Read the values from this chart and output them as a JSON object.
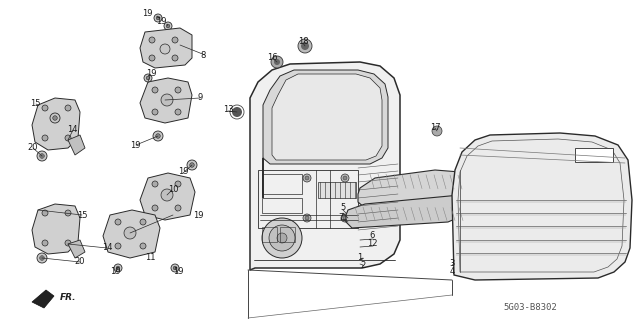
{
  "diagram_code": "5G03-B8302",
  "background_color": "#ffffff",
  "line_color": "#2a2a2a",
  "figsize": [
    6.4,
    3.19
  ],
  "dpi": 100,
  "labels": [
    [
      "19",
      147,
      14
    ],
    [
      "19",
      161,
      22
    ],
    [
      "8",
      203,
      55
    ],
    [
      "19",
      151,
      73
    ],
    [
      "15",
      35,
      103
    ],
    [
      "9",
      200,
      98
    ],
    [
      "14",
      72,
      130
    ],
    [
      "20",
      33,
      148
    ],
    [
      "19",
      135,
      145
    ],
    [
      "19",
      183,
      172
    ],
    [
      "10",
      173,
      190
    ],
    [
      "15",
      82,
      215
    ],
    [
      "19",
      198,
      215
    ],
    [
      "14",
      107,
      248
    ],
    [
      "20",
      80,
      262
    ],
    [
      "11",
      150,
      257
    ],
    [
      "19",
      115,
      272
    ],
    [
      "19",
      178,
      272
    ],
    [
      "13",
      228,
      110
    ],
    [
      "16",
      272,
      57
    ],
    [
      "18",
      303,
      42
    ],
    [
      "17",
      435,
      128
    ],
    [
      "5",
      343,
      208
    ],
    [
      "7",
      341,
      218
    ],
    [
      "6",
      372,
      236
    ],
    [
      "12",
      372,
      244
    ],
    [
      "1",
      360,
      258
    ],
    [
      "2",
      363,
      266
    ],
    [
      "3",
      452,
      264
    ],
    [
      "4",
      452,
      272
    ]
  ]
}
